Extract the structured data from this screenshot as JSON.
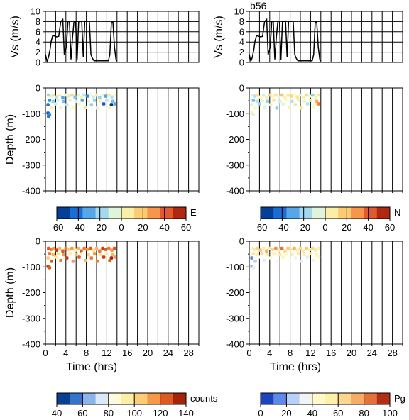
{
  "figure_label": "b56",
  "colormaps": {
    "diverging": [
      "#08306b",
      "#0050c8",
      "#2f8ae6",
      "#7cc3ec",
      "#c8eef0",
      "#f5fbc4",
      "#fde28a",
      "#fdb35a",
      "#f0783a",
      "#d43a1f",
      "#8c1405"
    ],
    "counts": [
      "#08306b",
      "#0a4fb5",
      "#5f98e2",
      "#b6d0f0",
      "#ffffff",
      "#fff7b8",
      "#fde390",
      "#fbb65e",
      "#ef7a32",
      "#cc3a12",
      "#7a0d00"
    ],
    "pg": [
      "#0a2a9a",
      "#2d5fe0",
      "#8eb1f2",
      "#e2ecfb",
      "#fffde8",
      "#fff6b0",
      "#fde9a0",
      "#f9c57a",
      "#f0924e",
      "#d8502a",
      "#8a1000"
    ]
  },
  "chart_data": [
    {
      "type": "line",
      "panel": "vs-left",
      "xlabel": "",
      "ylabel": "Vs (m/s)",
      "xlim": [
        0,
        30
      ],
      "ylim": [
        0,
        10
      ],
      "yticks": [
        0,
        2,
        4,
        6,
        8,
        10
      ],
      "x": [
        0,
        0.3,
        0.6,
        0.9,
        1.1,
        1.4,
        1.7,
        2.2,
        2.6,
        3.0,
        3.4,
        3.7,
        4.1,
        4.4,
        4.7,
        5.0,
        5.3,
        5.6,
        5.9,
        6.2,
        6.5,
        6.8,
        7.1,
        7.4,
        7.7,
        8.0,
        8.3,
        8.6,
        8.9,
        9.2,
        9.5,
        9.8,
        10.2,
        10.8,
        11.4,
        12.0,
        12.3,
        12.6,
        12.9,
        13.2,
        13.5,
        13.8,
        14.0
      ],
      "y": [
        1.6,
        0.2,
        1.0,
        2.5,
        4.0,
        5.2,
        5.2,
        5.0,
        5.1,
        8.0,
        8.4,
        1.5,
        3.0,
        8.0,
        8.0,
        0.6,
        5.0,
        8.1,
        8.0,
        0.5,
        8.0,
        8.0,
        8.1,
        1.0,
        8.1,
        8.0,
        8.1,
        8.0,
        1.5,
        0.8,
        0.3,
        0.3,
        0.3,
        0.3,
        0.3,
        0.3,
        0.3,
        1.5,
        7.8,
        8.0,
        3.0,
        0.5,
        0.3
      ]
    },
    {
      "type": "line",
      "panel": "vs-right",
      "xlabel": "",
      "ylabel": "Vs (m/s)",
      "xlim": [
        0,
        30
      ],
      "ylim": [
        0,
        10
      ],
      "yticks": [
        0,
        2,
        4,
        6,
        8,
        10
      ],
      "x": [
        0,
        0.3,
        0.6,
        0.9,
        1.1,
        1.4,
        1.7,
        2.2,
        2.6,
        3.0,
        3.4,
        3.7,
        4.1,
        4.4,
        4.7,
        5.0,
        5.3,
        5.6,
        5.9,
        6.2,
        6.5,
        6.8,
        7.1,
        7.4,
        7.7,
        8.0,
        8.3,
        8.6,
        8.9,
        9.2,
        9.5,
        9.8,
        10.2,
        10.8,
        11.4,
        12.0,
        12.3,
        12.6,
        12.9,
        13.2,
        13.5,
        13.8,
        14.0
      ],
      "y": [
        1.6,
        0.2,
        1.0,
        2.5,
        4.0,
        5.2,
        5.2,
        5.0,
        5.1,
        8.0,
        8.4,
        1.5,
        3.0,
        8.0,
        8.0,
        0.6,
        5.0,
        8.1,
        8.0,
        0.5,
        8.0,
        8.0,
        8.1,
        1.0,
        8.1,
        8.0,
        8.1,
        8.0,
        1.5,
        0.8,
        0.3,
        0.3,
        0.3,
        0.3,
        0.3,
        0.3,
        0.3,
        1.5,
        7.8,
        8.0,
        3.0,
        0.5,
        0.3
      ]
    },
    {
      "type": "scatter",
      "panel": "E",
      "ylabel": "Depth (m)",
      "xlim": [
        0,
        30
      ],
      "ylim": [
        -400,
        0
      ],
      "yticks": [
        0,
        -100,
        -200,
        -300,
        -400
      ],
      "colorbar": {
        "title": "E",
        "range": [
          -60,
          60
        ],
        "ticks": [
          -60,
          -40,
          -20,
          0,
          20,
          40,
          60
        ],
        "cmap": "diverging"
      },
      "points": [
        [
          0.6,
          -28,
          -20
        ],
        [
          1.1,
          -32,
          -5
        ],
        [
          1.6,
          -28,
          10
        ],
        [
          2.2,
          -35,
          -15
        ],
        [
          2.8,
          -28,
          5
        ],
        [
          3.4,
          -38,
          -30
        ],
        [
          4.0,
          -28,
          0
        ],
        [
          4.6,
          -32,
          -10
        ],
        [
          5.2,
          -28,
          15
        ],
        [
          5.8,
          -35,
          -25
        ],
        [
          6.4,
          -28,
          -5
        ],
        [
          7.0,
          -38,
          5
        ],
        [
          7.6,
          -28,
          -15
        ],
        [
          8.2,
          -32,
          -35
        ],
        [
          8.8,
          -28,
          0
        ],
        [
          9.4,
          -35,
          -10
        ],
        [
          10.0,
          -28,
          5
        ],
        [
          10.6,
          -38,
          -20
        ],
        [
          11.2,
          -28,
          -5
        ],
        [
          11.8,
          -32,
          -30
        ],
        [
          12.4,
          -28,
          10
        ],
        [
          13.0,
          -35,
          -15
        ],
        [
          13.5,
          -28,
          0
        ],
        [
          0.8,
          -48,
          -35
        ],
        [
          1.5,
          -52,
          -20
        ],
        [
          2.5,
          -48,
          -5
        ],
        [
          3.6,
          -52,
          -25
        ],
        [
          4.8,
          -48,
          5
        ],
        [
          6.0,
          -52,
          -10
        ],
        [
          7.2,
          -48,
          -30
        ],
        [
          8.4,
          -52,
          -5
        ],
        [
          9.6,
          -48,
          -20
        ],
        [
          10.8,
          -52,
          5
        ],
        [
          12.0,
          -48,
          -15
        ],
        [
          13.2,
          -52,
          -25
        ],
        [
          0.5,
          -65,
          -40
        ],
        [
          2.0,
          -62,
          -10
        ],
        [
          4.2,
          -65,
          -15
        ],
        [
          6.6,
          -62,
          0
        ],
        [
          9.0,
          -65,
          -20
        ],
        [
          11.4,
          -62,
          -45
        ],
        [
          12.9,
          -65,
          -60
        ],
        [
          13.6,
          -62,
          -30
        ],
        [
          1.2,
          -78,
          5
        ],
        [
          3.0,
          -75,
          -5
        ],
        [
          5.4,
          -78,
          0
        ],
        [
          7.8,
          -75,
          10
        ],
        [
          10.2,
          -78,
          -5
        ],
        [
          12.6,
          -75,
          5
        ],
        [
          0.5,
          -98,
          -45
        ],
        [
          0.8,
          -103,
          -35
        ],
        [
          0.6,
          -110,
          -40
        ]
      ]
    },
    {
      "type": "scatter",
      "panel": "N",
      "ylabel": "",
      "xlim": [
        0,
        30
      ],
      "ylim": [
        -400,
        0
      ],
      "yticks": [
        0,
        -100,
        -200,
        -300,
        -400
      ],
      "colorbar": {
        "title": "N",
        "range": [
          -60,
          60
        ],
        "ticks": [
          -60,
          -40,
          -20,
          0,
          20,
          40,
          60
        ],
        "cmap": "diverging"
      },
      "points": [
        [
          0.6,
          -28,
          5
        ],
        [
          1.1,
          -32,
          -15
        ],
        [
          1.6,
          -28,
          10
        ],
        [
          2.2,
          -35,
          0
        ],
        [
          2.8,
          -28,
          -10
        ],
        [
          3.4,
          -38,
          5
        ],
        [
          4.0,
          -28,
          15
        ],
        [
          4.6,
          -32,
          0
        ],
        [
          5.2,
          -28,
          10
        ],
        [
          5.8,
          -35,
          -5
        ],
        [
          6.4,
          -28,
          20
        ],
        [
          7.0,
          -38,
          5
        ],
        [
          7.6,
          -28,
          10
        ],
        [
          8.2,
          -32,
          15
        ],
        [
          8.8,
          -28,
          0
        ],
        [
          9.4,
          -35,
          10
        ],
        [
          10.0,
          -28,
          -5
        ],
        [
          10.6,
          -38,
          5
        ],
        [
          11.2,
          -28,
          15
        ],
        [
          11.8,
          -32,
          0
        ],
        [
          12.4,
          -28,
          -20
        ],
        [
          13.0,
          -35,
          5
        ],
        [
          13.5,
          -28,
          10
        ],
        [
          0.8,
          -48,
          -25
        ],
        [
          1.5,
          -52,
          -15
        ],
        [
          2.5,
          -48,
          5
        ],
        [
          3.6,
          -52,
          -20
        ],
        [
          4.8,
          -48,
          10
        ],
        [
          6.0,
          -52,
          -10
        ],
        [
          7.2,
          -48,
          0
        ],
        [
          8.4,
          -52,
          -15
        ],
        [
          9.6,
          -48,
          5
        ],
        [
          10.8,
          -52,
          -5
        ],
        [
          12.0,
          -48,
          10
        ],
        [
          13.2,
          -52,
          25
        ],
        [
          0.5,
          -65,
          -10
        ],
        [
          2.0,
          -62,
          -20
        ],
        [
          4.2,
          -65,
          5
        ],
        [
          6.6,
          -62,
          -5
        ],
        [
          9.0,
          -65,
          10
        ],
        [
          11.4,
          -62,
          -15
        ],
        [
          12.9,
          -65,
          0
        ],
        [
          13.6,
          -62,
          35
        ],
        [
          1.2,
          -78,
          0
        ],
        [
          3.0,
          -75,
          -5
        ],
        [
          5.4,
          -78,
          -20
        ],
        [
          7.8,
          -75,
          5
        ],
        [
          10.2,
          -78,
          10
        ],
        [
          12.6,
          -75,
          0
        ],
        [
          0.5,
          -98,
          5
        ],
        [
          0.8,
          -103,
          -5
        ]
      ]
    },
    {
      "type": "scatter",
      "panel": "counts",
      "ylabel": "Depth (m)",
      "xlabel": "Time (hrs)",
      "xlim": [
        0,
        30
      ],
      "xticks": [
        0,
        4,
        8,
        12,
        16,
        20,
        24,
        28
      ],
      "ylim": [
        -400,
        0
      ],
      "yticks": [
        0,
        -100,
        -200,
        -300,
        -400
      ],
      "colorbar": {
        "title": "counts",
        "range": [
          40,
          140
        ],
        "ticks": [
          40,
          60,
          80,
          100,
          120,
          140
        ],
        "cmap": "counts"
      },
      "points": [
        [
          0.6,
          -28,
          125
        ],
        [
          1.1,
          -32,
          120
        ],
        [
          1.6,
          -28,
          115
        ],
        [
          2.2,
          -35,
          130
        ],
        [
          2.8,
          -28,
          110
        ],
        [
          3.4,
          -38,
          125
        ],
        [
          4.0,
          -28,
          120
        ],
        [
          4.6,
          -32,
          105
        ],
        [
          5.2,
          -28,
          115
        ],
        [
          5.8,
          -35,
          95
        ],
        [
          6.4,
          -28,
          110
        ],
        [
          7.0,
          -38,
          125
        ],
        [
          7.6,
          -28,
          120
        ],
        [
          8.2,
          -32,
          115
        ],
        [
          8.8,
          -28,
          125
        ],
        [
          9.4,
          -35,
          100
        ],
        [
          10.0,
          -28,
          110
        ],
        [
          10.6,
          -38,
          120
        ],
        [
          11.2,
          -28,
          130
        ],
        [
          11.8,
          -32,
          125
        ],
        [
          12.4,
          -28,
          120
        ],
        [
          13.0,
          -35,
          115
        ],
        [
          13.5,
          -28,
          125
        ],
        [
          0.8,
          -48,
          120
        ],
        [
          1.5,
          -52,
          110
        ],
        [
          2.5,
          -48,
          100
        ],
        [
          3.6,
          -52,
          115
        ],
        [
          4.8,
          -48,
          95
        ],
        [
          6.0,
          -52,
          110
        ],
        [
          7.2,
          -48,
          90
        ],
        [
          8.4,
          -52,
          105
        ],
        [
          9.6,
          -48,
          115
        ],
        [
          10.8,
          -52,
          100
        ],
        [
          12.0,
          -48,
          95
        ],
        [
          13.2,
          -52,
          110
        ],
        [
          0.5,
          -65,
          105
        ],
        [
          2.0,
          -62,
          100
        ],
        [
          4.2,
          -65,
          130
        ],
        [
          6.6,
          -62,
          125
        ],
        [
          9.0,
          -65,
          120
        ],
        [
          11.4,
          -62,
          130
        ],
        [
          12.9,
          -65,
          135
        ],
        [
          13.6,
          -62,
          115
        ],
        [
          1.2,
          -78,
          125
        ],
        [
          3.0,
          -75,
          120
        ],
        [
          5.4,
          -78,
          115
        ],
        [
          7.8,
          -75,
          110
        ],
        [
          10.2,
          -78,
          120
        ],
        [
          12.6,
          -75,
          125
        ],
        [
          0.5,
          -98,
          130
        ],
        [
          0.8,
          -103,
          125
        ]
      ]
    },
    {
      "type": "scatter",
      "panel": "Pg",
      "ylabel": "",
      "xlabel": "Time (hrs)",
      "xlim": [
        0,
        30
      ],
      "xticks": [
        0,
        4,
        8,
        12,
        16,
        20,
        24,
        28
      ],
      "ylim": [
        -400,
        0
      ],
      "yticks": [
        0,
        -100,
        -200,
        -300,
        -400
      ],
      "colorbar": {
        "title": "Pg",
        "range": [
          0,
          100
        ],
        "ticks": [
          0,
          20,
          40,
          60,
          80,
          100
        ],
        "cmap": "pg"
      },
      "points": [
        [
          0.6,
          -28,
          55
        ],
        [
          1.1,
          -32,
          60
        ],
        [
          1.6,
          -28,
          65
        ],
        [
          2.2,
          -35,
          70
        ],
        [
          2.8,
          -28,
          55
        ],
        [
          3.4,
          -38,
          75
        ],
        [
          4.0,
          -28,
          60
        ],
        [
          4.6,
          -32,
          65
        ],
        [
          5.2,
          -28,
          80
        ],
        [
          5.8,
          -35,
          60
        ],
        [
          6.4,
          -28,
          85
        ],
        [
          7.0,
          -38,
          65
        ],
        [
          7.6,
          -28,
          70
        ],
        [
          8.2,
          -32,
          60
        ],
        [
          8.8,
          -28,
          75
        ],
        [
          9.4,
          -35,
          55
        ],
        [
          10.0,
          -28,
          65
        ],
        [
          10.6,
          -38,
          60
        ],
        [
          11.2,
          -28,
          70
        ],
        [
          11.8,
          -32,
          55
        ],
        [
          12.4,
          -28,
          65
        ],
        [
          13.0,
          -35,
          60
        ],
        [
          13.5,
          -28,
          55
        ],
        [
          0.8,
          -48,
          60
        ],
        [
          1.5,
          -52,
          55
        ],
        [
          2.5,
          -48,
          65
        ],
        [
          3.6,
          -52,
          60
        ],
        [
          4.8,
          -48,
          55
        ],
        [
          6.0,
          -52,
          60
        ],
        [
          7.2,
          -48,
          50
        ],
        [
          8.4,
          -52,
          55
        ],
        [
          9.6,
          -48,
          60
        ],
        [
          10.8,
          -52,
          55
        ],
        [
          12.0,
          -48,
          60
        ],
        [
          13.2,
          -52,
          50
        ],
        [
          0.5,
          -65,
          15
        ],
        [
          2.0,
          -62,
          40
        ],
        [
          4.2,
          -65,
          45
        ],
        [
          6.6,
          -62,
          50
        ],
        [
          9.0,
          -65,
          35
        ],
        [
          11.4,
          -62,
          30
        ],
        [
          12.9,
          -65,
          40
        ],
        [
          13.6,
          -62,
          45
        ],
        [
          1.2,
          -78,
          25
        ],
        [
          3.0,
          -75,
          30
        ],
        [
          5.4,
          -78,
          35
        ],
        [
          7.8,
          -75,
          40
        ],
        [
          10.2,
          -78,
          30
        ],
        [
          12.6,
          -75,
          35
        ],
        [
          0.5,
          -98,
          20
        ],
        [
          0.8,
          -103,
          30
        ]
      ]
    }
  ]
}
